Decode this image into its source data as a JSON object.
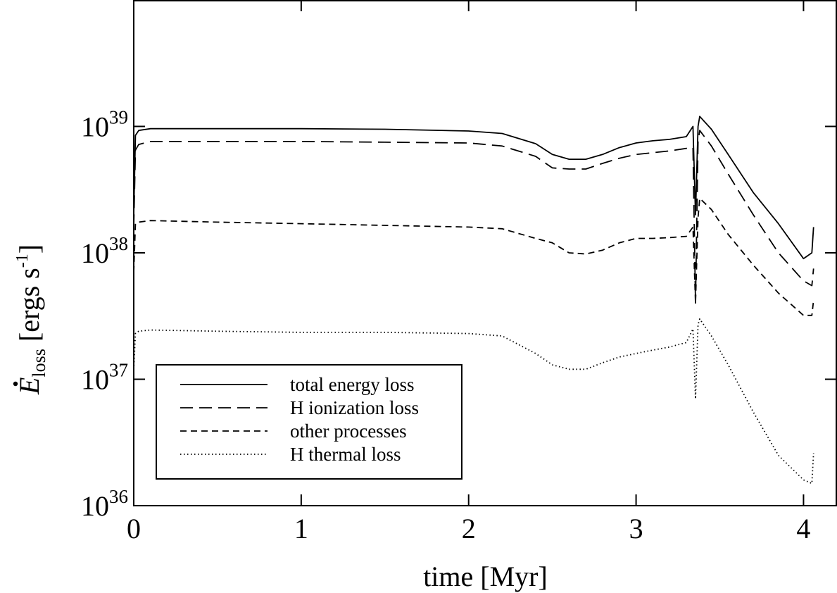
{
  "chart_data": {
    "type": "line",
    "xlabel": "time [Myr]",
    "ylabel": {
      "symbol": "E",
      "subscript": "loss",
      "unit_prefix": " [ergs s",
      "unit_exp": "-1",
      "unit_suffix": "]"
    },
    "xlim": [
      0,
      4.2
    ],
    "ylim": [
      1e+36,
      1e+40
    ],
    "yscale": "log",
    "grid": false,
    "legend_position": "bottom-left",
    "x_ticks": [
      {
        "value": 0,
        "label": "0"
      },
      {
        "value": 1,
        "label": "1"
      },
      {
        "value": 2,
        "label": "2"
      },
      {
        "value": 3,
        "label": "3"
      },
      {
        "value": 4,
        "label": "4"
      }
    ],
    "y_ticks": [
      {
        "value": 1e+36,
        "base": "10",
        "exp": "36"
      },
      {
        "value": 1e+37,
        "base": "10",
        "exp": "37"
      },
      {
        "value": 1e+38,
        "base": "10",
        "exp": "38"
      },
      {
        "value": 1e+39,
        "base": "10",
        "exp": "39"
      }
    ],
    "series": [
      {
        "name": "total energy loss",
        "dash": "solid",
        "x": [
          0,
          0.01,
          0.03,
          0.1,
          0.5,
          1.0,
          1.5,
          2.0,
          2.2,
          2.4,
          2.5,
          2.6,
          2.7,
          2.8,
          2.9,
          3.0,
          3.1,
          3.2,
          3.3,
          3.34,
          3.355,
          3.37,
          3.38,
          3.45,
          3.55,
          3.7,
          3.85,
          4.0,
          4.05,
          4.06
        ],
        "y": [
          2e+38,
          8.5e+38,
          9.3e+38,
          9.6e+38,
          9.6e+38,
          9.6e+38,
          9.5e+38,
          9.2e+38,
          8.8e+38,
          7.3e+38,
          6e+38,
          5.5e+38,
          5.5e+38,
          6e+38,
          6.8e+38,
          7.4e+38,
          7.7e+38,
          7.9e+38,
          8.3e+38,
          1e+39,
          2e+38,
          1e+39,
          1.2e+39,
          9.5e+38,
          6e+38,
          3e+38,
          1.7e+38,
          9e+37,
          1e+38,
          1.6e+38
        ]
      },
      {
        "name": "H ionization loss",
        "dash": "long-dash",
        "x": [
          0,
          0.01,
          0.03,
          0.1,
          0.5,
          1.0,
          1.5,
          2.0,
          2.2,
          2.4,
          2.5,
          2.6,
          2.7,
          2.8,
          2.9,
          3.0,
          3.1,
          3.2,
          3.3,
          3.34,
          3.355,
          3.37,
          3.38,
          3.45,
          3.55,
          3.7,
          3.85,
          4.0,
          4.05,
          4.06
        ],
        "y": [
          1.6e+38,
          6.5e+38,
          7.2e+38,
          7.6e+38,
          7.6e+38,
          7.6e+38,
          7.5e+38,
          7.4e+38,
          7e+38,
          5.8e+38,
          4.7e+38,
          4.6e+38,
          4.6e+38,
          5.1e+38,
          5.6e+38,
          6e+38,
          6.2e+38,
          6.4e+38,
          6.7e+38,
          6.8e+38,
          4e+37,
          7.5e+38,
          9.3e+38,
          7e+38,
          4.2e+38,
          2e+38,
          1e+38,
          6e+37,
          5.5e+37,
          7.5e+37
        ]
      },
      {
        "name": "other processes",
        "dash": "short-dash",
        "x": [
          0,
          0.01,
          0.03,
          0.1,
          0.5,
          1.0,
          1.5,
          2.0,
          2.2,
          2.4,
          2.5,
          2.6,
          2.7,
          2.8,
          2.9,
          3.0,
          3.1,
          3.2,
          3.3,
          3.34,
          3.355,
          3.37,
          3.38,
          3.45,
          3.55,
          3.7,
          3.85,
          4.0,
          4.05,
          4.06
        ],
        "y": [
          7e+37,
          1.7e+38,
          1.75e+38,
          1.8e+38,
          1.75e+38,
          1.7e+38,
          1.65e+38,
          1.6e+38,
          1.55e+38,
          1.3e+38,
          1.2e+38,
          1e+38,
          9.8e+37,
          1.05e+38,
          1.2e+38,
          1.3e+38,
          1.3e+38,
          1.32e+38,
          1.35e+38,
          1.6e+38,
          4e+37,
          1.9e+38,
          2.7e+38,
          2.2e+38,
          1.4e+38,
          8e+37,
          4.8e+37,
          3.2e+37,
          3.2e+37,
          4.2e+37
        ]
      },
      {
        "name": "H thermal loss",
        "dash": "dotted",
        "x": [
          0,
          0.01,
          0.03,
          0.1,
          0.5,
          1.0,
          1.5,
          2.0,
          2.2,
          2.4,
          2.5,
          2.6,
          2.7,
          2.8,
          2.9,
          3.0,
          3.1,
          3.2,
          3.3,
          3.34,
          3.355,
          3.37,
          3.38,
          3.45,
          3.55,
          3.7,
          3.85,
          4.0,
          4.05,
          4.06
        ],
        "y": [
          1.2e+37,
          2.3e+37,
          2.4e+37,
          2.45e+37,
          2.4e+37,
          2.35e+37,
          2.35e+37,
          2.3e+37,
          2.2e+37,
          1.6e+37,
          1.3e+37,
          1.2e+37,
          1.2e+37,
          1.35e+37,
          1.5e+37,
          1.6e+37,
          1.7e+37,
          1.8e+37,
          1.95e+37,
          2.5e+37,
          7e+36,
          2.7e+37,
          3e+37,
          2.2e+37,
          1.3e+37,
          5.5e+36,
          2.5e+36,
          1.6e+36,
          1.5e+36,
          2.6e+36
        ]
      }
    ]
  }
}
